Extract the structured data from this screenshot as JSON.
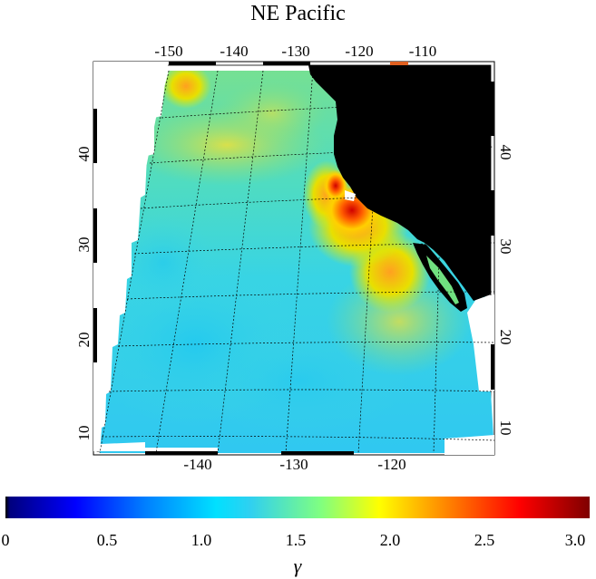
{
  "title": "NE Pacific",
  "map": {
    "top_longitude_labels": [
      "-150",
      "-140",
      "-130",
      "-120",
      "-110"
    ],
    "bottom_longitude_labels": [
      "-140",
      "-130",
      "-120"
    ],
    "left_latitude_labels": [
      "40",
      "30",
      "20",
      "10"
    ],
    "right_latitude_labels": [
      "40",
      "30",
      "20",
      "10"
    ],
    "land_color": "#000000",
    "ocean_hotspot": "coastal upwelling off California / Baja",
    "colors": {
      "low": "#00007f",
      "mid": "#30d0f0",
      "high": "#7f0000"
    }
  },
  "colorbar": {
    "ticks": [
      "0",
      "0.5",
      "1.0",
      "1.5",
      "2.0",
      "2.5",
      "3.0"
    ],
    "min": 0,
    "max": 3.0,
    "variable_symbol": "γ"
  }
}
